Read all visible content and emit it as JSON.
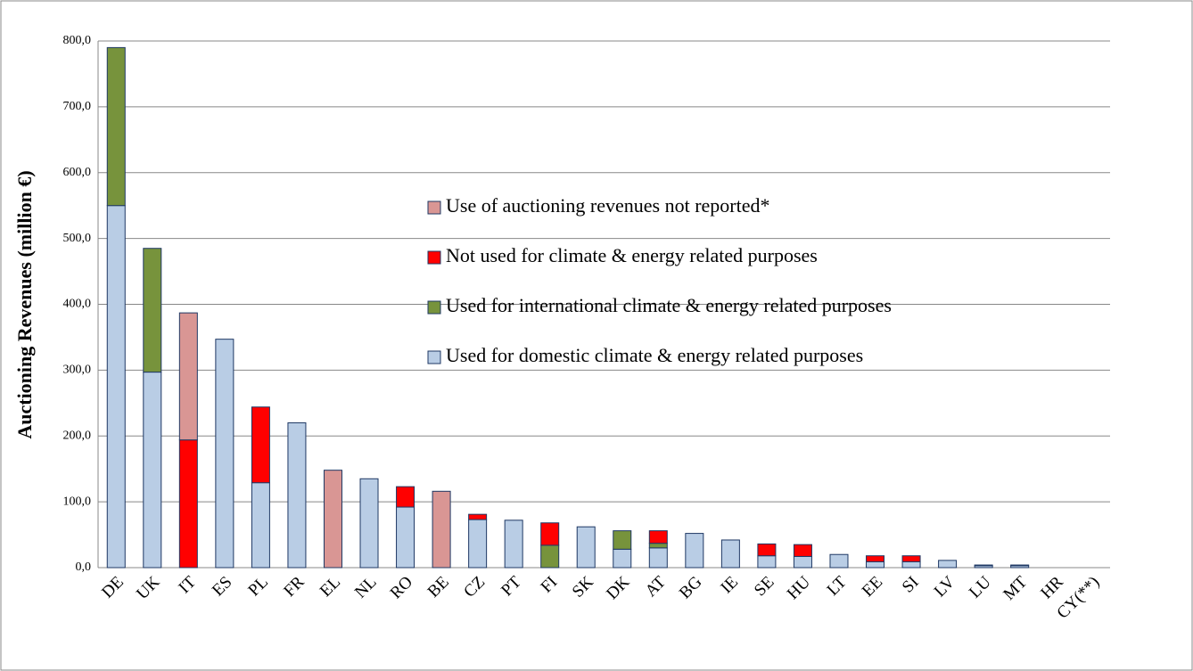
{
  "chart_data": {
    "type": "stacked-bar",
    "y_label": "Auctioning Revenues (million €)",
    "categories": [
      "DE",
      "UK",
      "IT",
      "ES",
      "PL",
      "FR",
      "EL",
      "NL",
      "RO",
      "BE",
      "CZ",
      "PT",
      "FI",
      "SK",
      "DK",
      "AT",
      "BG",
      "IE",
      "SE",
      "HU",
      "LT",
      "EE",
      "SI",
      "LV",
      "LU",
      "MT",
      "HR",
      "CY(**)"
    ],
    "series": [
      {
        "name": "Used for domestic climate & energy related purposes",
        "color": "#b9cde5",
        "values": [
          550,
          297,
          0,
          347,
          129,
          220,
          0,
          135,
          92,
          0,
          73,
          72,
          0,
          62,
          28,
          30,
          52,
          42,
          18,
          17,
          20,
          9,
          9,
          11,
          3,
          3,
          0,
          0
        ]
      },
      {
        "name": "Used for international climate & energy related purposes",
        "color": "#77933c",
        "values": [
          240,
          188,
          0,
          0,
          0,
          0,
          0,
          0,
          0,
          0,
          0,
          0,
          34,
          0,
          28,
          7,
          0,
          0,
          0,
          0,
          0,
          0,
          0,
          0,
          0,
          0,
          0,
          0
        ]
      },
      {
        "name": "Not used for climate & energy related purposes",
        "color": "#ff0000",
        "values": [
          0,
          0,
          194,
          0,
          115,
          0,
          0,
          0,
          31,
          0,
          8,
          0,
          34,
          0,
          0,
          19,
          0,
          0,
          18,
          18,
          0,
          9,
          9,
          0,
          1,
          1,
          0,
          0
        ]
      },
      {
        "name": "Use of auctioning revenues not reported*",
        "color": "#d99694",
        "values": [
          0,
          0,
          193,
          0,
          0,
          0,
          148,
          0,
          0,
          116,
          0,
          0,
          0,
          0,
          0,
          0,
          0,
          0,
          0,
          0,
          0,
          0,
          0,
          0,
          0,
          0,
          0,
          0
        ]
      }
    ],
    "ylim": [
      0,
      800
    ],
    "yticks": [
      {
        "value": 0,
        "label": "0,0"
      },
      {
        "value": 100,
        "label": "100,0"
      },
      {
        "value": 200,
        "label": "200,0"
      },
      {
        "value": 300,
        "label": "300,0"
      },
      {
        "value": 400,
        "label": "400,0"
      },
      {
        "value": 500,
        "label": "500,0"
      },
      {
        "value": 600,
        "label": "600,0"
      },
      {
        "value": 700,
        "label": "700,0"
      },
      {
        "value": 800,
        "label": "800,0"
      }
    ],
    "grid": true
  }
}
